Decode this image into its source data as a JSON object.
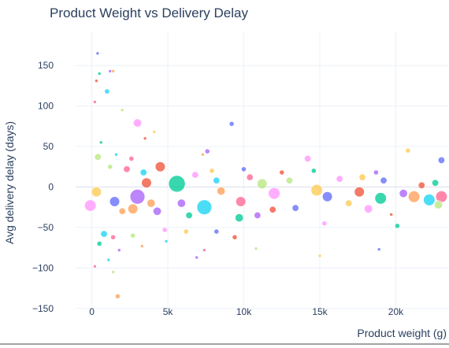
{
  "chart_data": {
    "type": "scatter",
    "title": "Product Weight vs Delivery Delay",
    "xlabel": "Product weight (g)",
    "ylabel": "Avg delivery delay (days)",
    "xlim": [
      -2000,
      23500
    ],
    "ylim": [
      -158,
      192
    ],
    "x_ticks": [
      0,
      5000,
      10000,
      15000,
      20000
    ],
    "x_tick_labels": [
      "0",
      "5k",
      "10k",
      "15k",
      "20k"
    ],
    "y_ticks": [
      -150,
      -100,
      -50,
      0,
      50,
      100,
      150
    ],
    "y_tick_labels": [
      "−150",
      "−100",
      "−50",
      "0",
      "50",
      "100",
      "150"
    ],
    "grid": true,
    "legend": "none",
    "marker_colors": [
      "#636efa",
      "#ef553b",
      "#00cc96",
      "#ab63fa",
      "#ffa15a",
      "#19d3f3",
      "#ff6692",
      "#b6e880",
      "#ff97ff",
      "#fecb52"
    ],
    "points": [
      {
        "x": 380,
        "y": 165,
        "s": 1
      },
      {
        "x": 300,
        "y": 131,
        "s": 1
      },
      {
        "x": 500,
        "y": 140,
        "s": 1
      },
      {
        "x": 1200,
        "y": 143,
        "s": 1
      },
      {
        "x": 1400,
        "y": 143,
        "s": 1
      },
      {
        "x": 1000,
        "y": 118,
        "s": 2
      },
      {
        "x": 200,
        "y": 105,
        "s": 1
      },
      {
        "x": 2000,
        "y": 95,
        "s": 1
      },
      {
        "x": 3000,
        "y": 79,
        "s": 4
      },
      {
        "x": 4100,
        "y": 68,
        "s": 1
      },
      {
        "x": 9200,
        "y": 78,
        "s": 2
      },
      {
        "x": 3500,
        "y": 60,
        "s": 1
      },
      {
        "x": 600,
        "y": 55,
        "s": 1
      },
      {
        "x": 7600,
        "y": 44,
        "s": 2
      },
      {
        "x": 7300,
        "y": 40,
        "s": 1
      },
      {
        "x": 1600,
        "y": 40,
        "s": 1
      },
      {
        "x": 2600,
        "y": 35,
        "s": 2
      },
      {
        "x": 400,
        "y": 37,
        "s": 3
      },
      {
        "x": 14200,
        "y": 35,
        "s": 3
      },
      {
        "x": 20800,
        "y": 45,
        "s": 2
      },
      {
        "x": 23000,
        "y": 33,
        "s": 3
      },
      {
        "x": 4500,
        "y": 25,
        "s": 5
      },
      {
        "x": 5600,
        "y": 4,
        "s": 9
      },
      {
        "x": 3000,
        "y": -12,
        "s": 8
      },
      {
        "x": 2700,
        "y": -27,
        "s": 5
      },
      {
        "x": 7400,
        "y": -25,
        "s": 8
      },
      {
        "x": 9800,
        "y": -18,
        "s": 5
      },
      {
        "x": 11200,
        "y": 4,
        "s": 5
      },
      {
        "x": 12000,
        "y": -8,
        "s": 6
      },
      {
        "x": 14800,
        "y": -4,
        "s": 6
      },
      {
        "x": 15500,
        "y": -12,
        "s": 5
      },
      {
        "x": 17600,
        "y": -6,
        "s": 5
      },
      {
        "x": 19000,
        "y": -14,
        "s": 6
      },
      {
        "x": 20500,
        "y": -8,
        "s": 4
      },
      {
        "x": 21200,
        "y": -12,
        "s": 6
      },
      {
        "x": 22200,
        "y": -16,
        "s": 6
      },
      {
        "x": 23000,
        "y": -12,
        "s": 6
      },
      {
        "x": 22800,
        "y": -22,
        "s": 4
      },
      {
        "x": -100,
        "y": -23,
        "s": 6
      },
      {
        "x": 300,
        "y": -6,
        "s": 5
      },
      {
        "x": 1500,
        "y": -18,
        "s": 5
      },
      {
        "x": 3600,
        "y": 5,
        "s": 5
      },
      {
        "x": 9700,
        "y": -38,
        "s": 4
      },
      {
        "x": 10900,
        "y": -35,
        "s": 3
      },
      {
        "x": 2000,
        "y": -30,
        "s": 3
      },
      {
        "x": 800,
        "y": -58,
        "s": 3
      },
      {
        "x": 1400,
        "y": -62,
        "s": 2
      },
      {
        "x": 2700,
        "y": -60,
        "s": 2
      },
      {
        "x": 4800,
        "y": -53,
        "s": 2
      },
      {
        "x": 6200,
        "y": -55,
        "s": 2
      },
      {
        "x": 8200,
        "y": -55,
        "s": 2
      },
      {
        "x": 9400,
        "y": -62,
        "s": 2
      },
      {
        "x": 500,
        "y": -70,
        "s": 2
      },
      {
        "x": 1800,
        "y": -78,
        "s": 1
      },
      {
        "x": 3300,
        "y": -73,
        "s": 1
      },
      {
        "x": 4900,
        "y": -67,
        "s": 1
      },
      {
        "x": 7400,
        "y": -78,
        "s": 1
      },
      {
        "x": 10800,
        "y": -76,
        "s": 1
      },
      {
        "x": 15300,
        "y": -45,
        "s": 2
      },
      {
        "x": 15000,
        "y": -85,
        "s": 1
      },
      {
        "x": 18900,
        "y": -77,
        "s": 1
      },
      {
        "x": 19700,
        "y": -34,
        "s": 1
      },
      {
        "x": 20100,
        "y": -48,
        "s": 2
      },
      {
        "x": 6900,
        "y": -87,
        "s": 1
      },
      {
        "x": 1700,
        "y": -135,
        "s": 2
      },
      {
        "x": 1100,
        "y": -90,
        "s": 1
      },
      {
        "x": 200,
        "y": -98,
        "s": 1
      },
      {
        "x": 1400,
        "y": -105,
        "s": 1
      },
      {
        "x": 18200,
        "y": -27,
        "s": 4
      },
      {
        "x": 16900,
        "y": -20,
        "s": 3
      },
      {
        "x": 13400,
        "y": -26,
        "s": 3
      },
      {
        "x": 11900,
        "y": -28,
        "s": 3
      },
      {
        "x": 6400,
        "y": -35,
        "s": 3
      },
      {
        "x": 5900,
        "y": -20,
        "s": 4
      },
      {
        "x": 8500,
        "y": -5,
        "s": 4
      },
      {
        "x": 8200,
        "y": 8,
        "s": 3
      },
      {
        "x": 10400,
        "y": 12,
        "s": 3
      },
      {
        "x": 13000,
        "y": 8,
        "s": 3
      },
      {
        "x": 16300,
        "y": 10,
        "s": 3
      },
      {
        "x": 17800,
        "y": 12,
        "s": 3
      },
      {
        "x": 19200,
        "y": 8,
        "s": 3
      },
      {
        "x": 21700,
        "y": 2,
        "s": 3
      },
      {
        "x": 22600,
        "y": 5,
        "s": 3
      },
      {
        "x": 4300,
        "y": -30,
        "s": 4
      },
      {
        "x": 3900,
        "y": -20,
        "s": 4
      },
      {
        "x": 3400,
        "y": 18,
        "s": 3
      },
      {
        "x": 2300,
        "y": 22,
        "s": 3
      },
      {
        "x": 1200,
        "y": 25,
        "s": 2
      },
      {
        "x": 6800,
        "y": 15,
        "s": 3
      },
      {
        "x": 7900,
        "y": 20,
        "s": 2
      },
      {
        "x": 10000,
        "y": 22,
        "s": 2
      },
      {
        "x": 12500,
        "y": 18,
        "s": 2
      },
      {
        "x": 14600,
        "y": 20,
        "s": 2
      },
      {
        "x": 18700,
        "y": 18,
        "s": 2
      }
    ]
  }
}
